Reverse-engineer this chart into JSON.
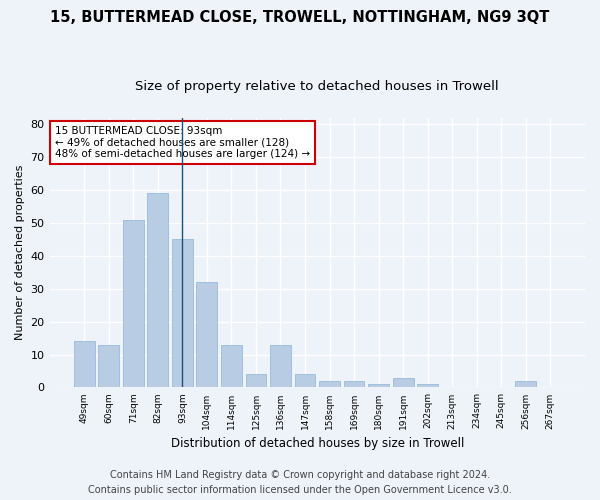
{
  "title": "15, BUTTERMEAD CLOSE, TROWELL, NOTTINGHAM, NG9 3QT",
  "subtitle": "Size of property relative to detached houses in Trowell",
  "xlabel": "Distribution of detached houses by size in Trowell",
  "ylabel": "Number of detached properties",
  "categories": [
    "49sqm",
    "60sqm",
    "71sqm",
    "82sqm",
    "93sqm",
    "104sqm",
    "114sqm",
    "125sqm",
    "136sqm",
    "147sqm",
    "158sqm",
    "169sqm",
    "180sqm",
    "191sqm",
    "202sqm",
    "213sqm",
    "234sqm",
    "245sqm",
    "256sqm",
    "267sqm"
  ],
  "values": [
    14,
    13,
    51,
    59,
    45,
    32,
    13,
    4,
    13,
    4,
    2,
    2,
    1,
    3,
    1,
    0,
    0,
    0,
    2,
    0
  ],
  "bar_color": "#b8cce4",
  "bar_edge_color": "#8db4d8",
  "highlight_index": 4,
  "highlight_line_color": "#1f4e79",
  "ylim": [
    0,
    82
  ],
  "yticks": [
    0,
    10,
    20,
    30,
    40,
    50,
    60,
    70,
    80
  ],
  "annotation_box_text": "15 BUTTERMEAD CLOSE: 93sqm\n← 49% of detached houses are smaller (128)\n48% of semi-detached houses are larger (124) →",
  "annotation_box_color": "#ffffff",
  "annotation_box_edge_color": "#cc0000",
  "footer_line1": "Contains HM Land Registry data © Crown copyright and database right 2024.",
  "footer_line2": "Contains public sector information licensed under the Open Government Licence v3.0.",
  "bg_color": "#eef2f9",
  "plot_bg_color": "#eef2f9",
  "grid_color": "#ffffff",
  "title_fontsize": 10.5,
  "subtitle_fontsize": 9.5,
  "footer_fontsize": 7.0
}
